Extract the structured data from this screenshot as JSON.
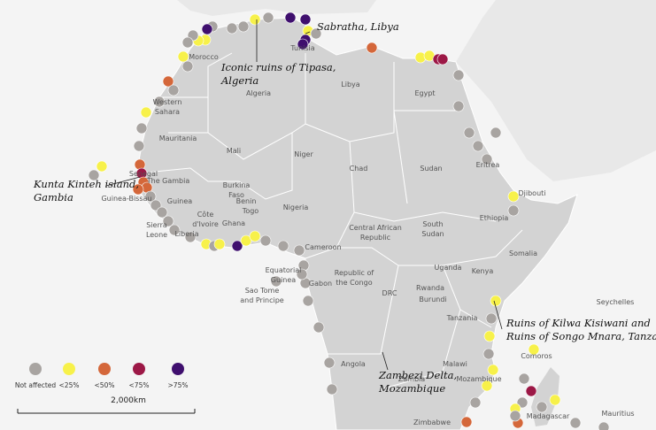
{
  "map": {
    "countries": [
      [
        "Morocco"
      ],
      [
        "Western",
        "Sahara"
      ],
      [
        "Algeria"
      ],
      [
        "Tunisia"
      ],
      [
        "Libya"
      ],
      [
        "Egypt"
      ],
      [
        "Mauritania"
      ],
      [
        "Mali"
      ],
      [
        "Niger"
      ],
      [
        "Chad"
      ],
      [
        "Sudan"
      ],
      [
        "Eritrea"
      ],
      [
        "Djibouti"
      ],
      [
        "Senegal"
      ],
      [
        "The Gambia"
      ],
      [
        "Guinea-Bissau"
      ],
      [
        "Guinea"
      ],
      [
        "Burkina",
        "Faso"
      ],
      [
        "Benin"
      ],
      [
        "Togo"
      ],
      [
        "Côte",
        "d'Ivoire"
      ],
      [
        "Ghana"
      ],
      [
        "Nigeria"
      ],
      [
        "Sierra",
        "Leone"
      ],
      [
        "Liberia"
      ],
      [
        "Ethiopia"
      ],
      [
        "South",
        "Sudan"
      ],
      [
        "Central African",
        "Republic"
      ],
      [
        "Cameroon"
      ],
      [
        "Somalia"
      ],
      [
        "Equatorial",
        "Guinea"
      ],
      [
        "Gabon"
      ],
      [
        "Republic of",
        "the Congo"
      ],
      [
        "Uganda"
      ],
      [
        "Kenya"
      ],
      [
        "Sao Tome",
        "and Principe"
      ],
      [
        "Rwanda"
      ],
      [
        "Burundi"
      ],
      [
        "DRC"
      ],
      [
        "Tanzania"
      ],
      [
        "Seychelles"
      ],
      [
        "Comoros"
      ],
      [
        "Angola"
      ],
      [
        "Malawi"
      ],
      [
        "Zambia"
      ],
      [
        "Mozambique"
      ],
      [
        "Zimbabwe"
      ],
      [
        "Madagascar"
      ],
      [
        "Mauritius"
      ]
    ],
    "annotations": [
      [
        "Sabratha, Libya"
      ],
      [
        "Iconic ruins of Tipasa,",
        "Algeria"
      ],
      [
        "Kunta Kinteh island,",
        "Gambia"
      ],
      [
        "Ruins of Kilwa Kisiwani and",
        "Ruins of Songo Mnara, Tanzania"
      ],
      [
        "Zambezi Delta,",
        "Mozambique"
      ]
    ],
    "legend": [
      {
        "label": "Not affected",
        "color": "#a8a4a1"
      },
      {
        "label": "<25%",
        "color": "#f7f14a"
      },
      {
        "label": "<50%",
        "color": "#d4673a"
      },
      {
        "label": "<75%",
        "color": "#9c1846"
      },
      {
        "label": ">75%",
        "color": "#3f0f6e"
      }
    ],
    "scale": "2,000km"
  }
}
